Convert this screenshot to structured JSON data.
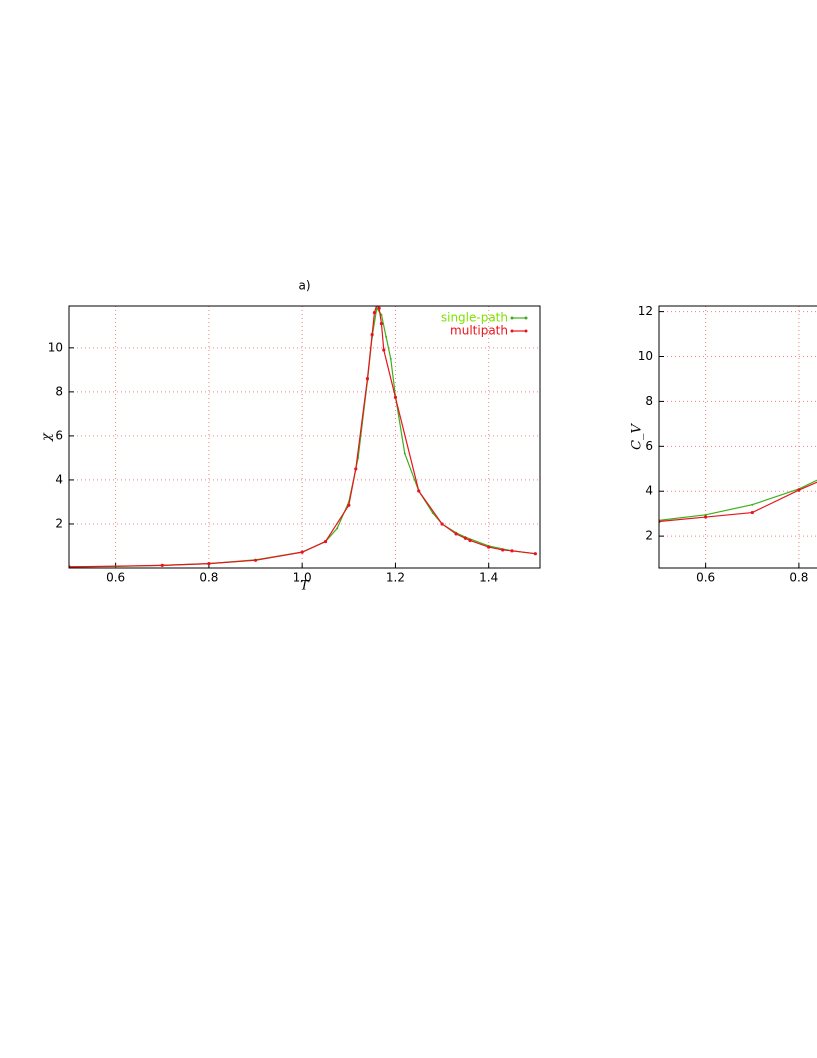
{
  "chart_data": [
    {
      "type": "line",
      "title": "a)",
      "xlabel": "T",
      "ylabel": "χ",
      "xlim": [
        0.5,
        1.51
      ],
      "ylim": [
        0,
        11.9
      ],
      "xticks": [
        0.6,
        0.8,
        {
          "value": 1,
          "label": "1.0"
        },
        1.2,
        1.4
      ],
      "yticks": [
        2,
        4,
        6,
        8,
        10
      ],
      "grid": true,
      "legend": "upper right",
      "series": [
        {
          "name": "single-path",
          "color": "#3cb01c",
          "legend_color": "#7fe000",
          "x": [
            0.5,
            0.6,
            0.7,
            0.8,
            0.9,
            1.0,
            1.05,
            1.075,
            1.1,
            1.12,
            1.14,
            1.15,
            1.16,
            1.17,
            1.18,
            1.19,
            1.2,
            1.22,
            1.25,
            1.28,
            1.3,
            1.33,
            1.35,
            1.4,
            1.45,
            1.5
          ],
          "values": [
            0.05,
            0.07,
            0.12,
            0.2,
            0.37,
            0.72,
            1.2,
            1.8,
            3.0,
            5.0,
            8.5,
            10.5,
            11.8,
            11.5,
            10.5,
            9.5,
            7.8,
            5.2,
            3.5,
            2.5,
            2.0,
            1.6,
            1.4,
            1.0,
            0.78,
            0.65
          ]
        },
        {
          "name": "multipath",
          "color": "#e8141c",
          "legend_color": "#e8141c",
          "x": [
            0.5,
            0.7,
            0.8,
            0.9,
            1.0,
            1.05,
            1.1,
            1.115,
            1.14,
            1.15,
            1.155,
            1.16,
            1.165,
            1.17,
            1.175,
            1.2,
            1.25,
            1.3,
            1.33,
            1.35,
            1.36,
            1.4,
            1.43,
            1.45,
            1.5
          ],
          "values": [
            0.05,
            0.12,
            0.2,
            0.35,
            0.72,
            1.2,
            2.85,
            4.5,
            8.6,
            10.6,
            11.6,
            11.95,
            11.8,
            11.1,
            9.9,
            7.75,
            3.5,
            2.0,
            1.55,
            1.35,
            1.25,
            0.95,
            0.82,
            0.78,
            0.65
          ]
        }
      ]
    },
    {
      "type": "line",
      "ylabel": "C_V",
      "xlim": [
        0.5,
        1.51
      ],
      "ylim": [
        0.58,
        12.25
      ],
      "xticks": [
        0.6,
        0.8
      ],
      "yticks": [
        2,
        4,
        6,
        8,
        10,
        12
      ],
      "grid": true,
      "series": [
        {
          "color": "#3cb01c",
          "x": [
            0.5,
            0.6,
            0.7,
            0.8,
            0.85
          ],
          "values": [
            2.7,
            2.95,
            3.4,
            4.1,
            4.6
          ]
        },
        {
          "color": "#e8141c",
          "x": [
            0.5,
            0.6,
            0.7,
            0.8,
            0.85
          ],
          "values": [
            2.65,
            2.85,
            3.05,
            4.05,
            4.5
          ]
        }
      ]
    }
  ]
}
